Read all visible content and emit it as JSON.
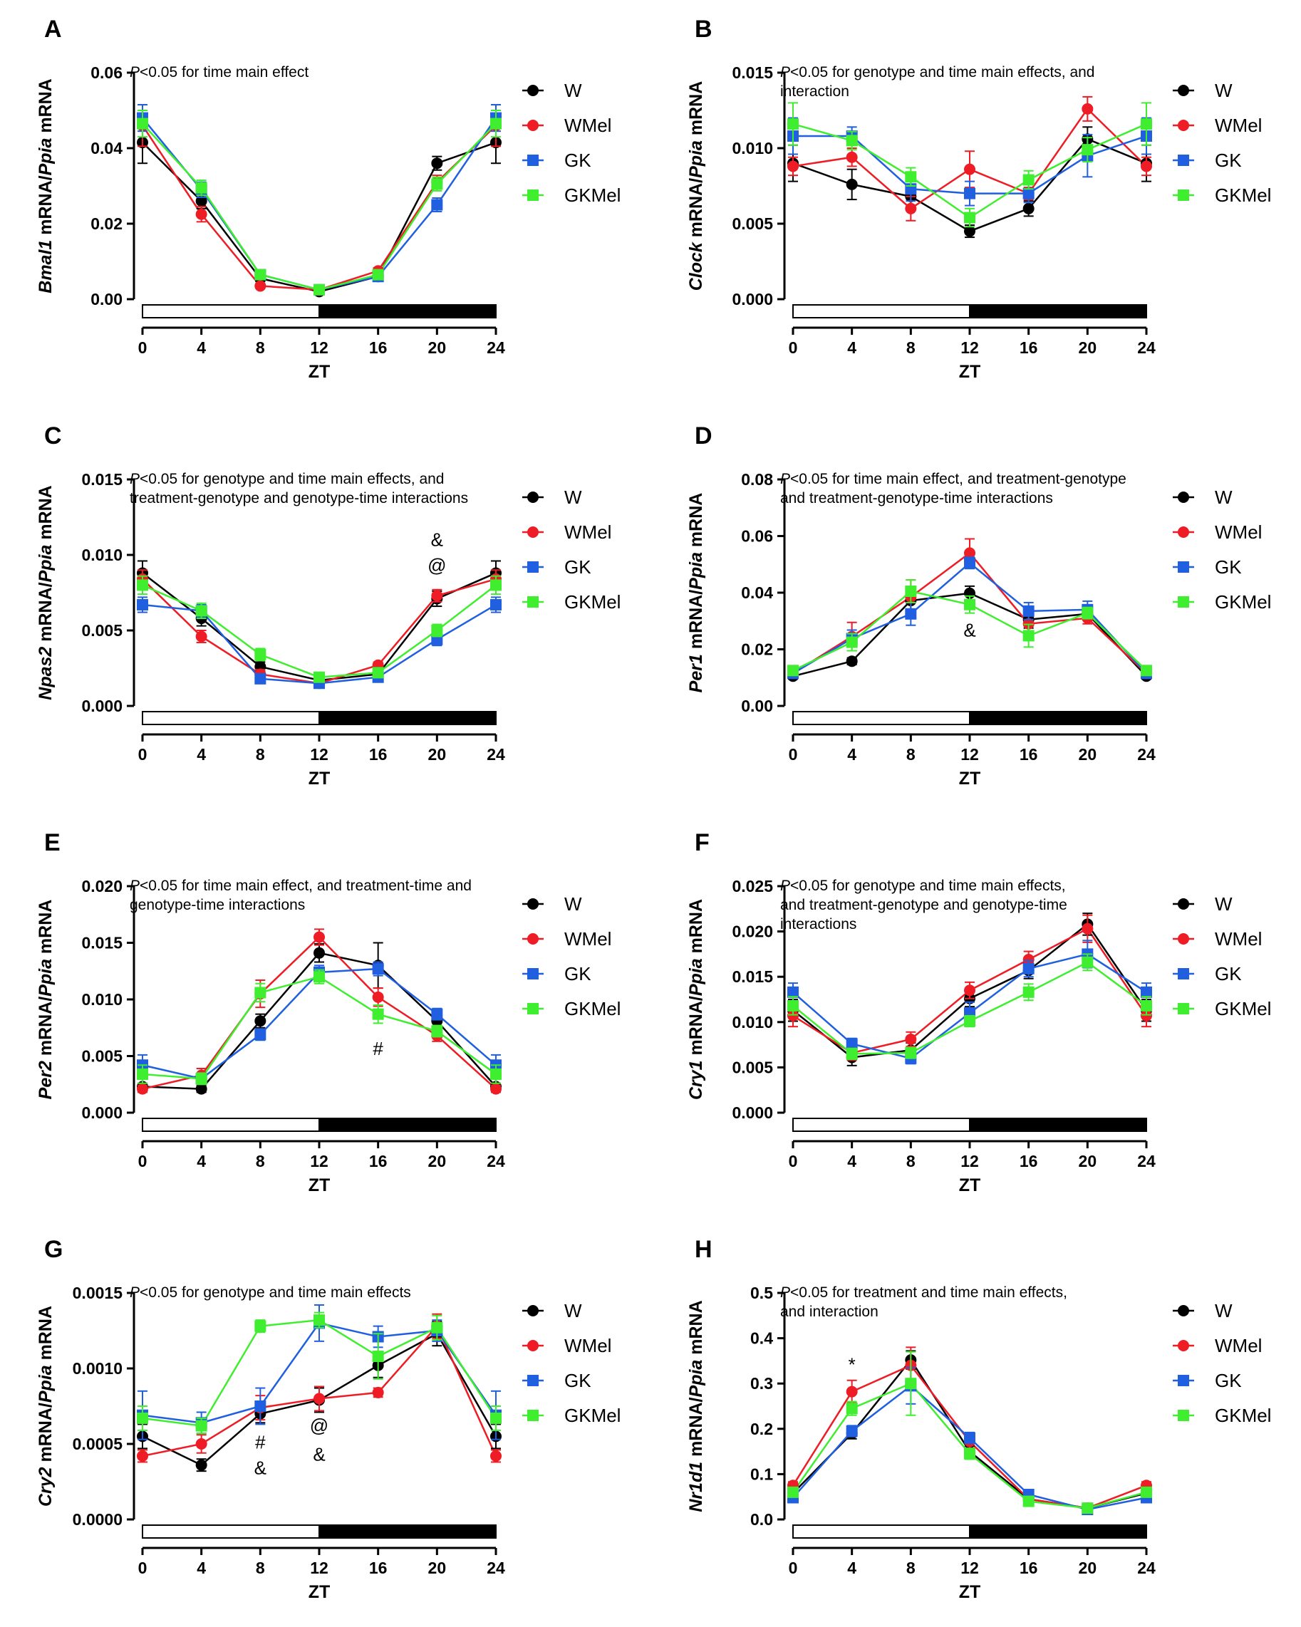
{
  "figure": {
    "legend_labels": [
      "W",
      "WMel",
      "GK",
      "GKMel"
    ],
    "colors": {
      "W": "#000000",
      "WMel": "#ee1c24",
      "GK": "#1f5fe0",
      "GKMel": "#3fee2f"
    },
    "x_axis_title": "ZT",
    "x_ticks": [
      "0",
      "4",
      "8",
      "12",
      "16",
      "20",
      "24"
    ]
  },
  "chart_data": [
    {
      "type": "line",
      "label": "A",
      "gene": "Bmal1",
      "ylabel_gene": "Bmal1",
      "ylabel_rest": " mRNA/",
      "ylabel_ref": "Ppia",
      "ylabel_end": " mRNA",
      "xlabel": "ZT",
      "x": [
        0,
        4,
        8,
        12,
        16,
        20,
        24
      ],
      "ylim": [
        0,
        0.06
      ],
      "yticks": [
        "0.00",
        "0.02",
        "0.04",
        "0.06"
      ],
      "note_p": "P",
      "note": [
        "<0.05 for time main effect"
      ],
      "series": [
        {
          "name": "W",
          "values": [
            0.0415,
            0.026,
            0.0055,
            0.002,
            0.006,
            0.036,
            0.0415
          ],
          "err": [
            0.0055,
            0.002,
            0.0008,
            0.0005,
            0.0008,
            0.0018,
            0.0055
          ]
        },
        {
          "name": "WMel",
          "values": [
            0.046,
            0.0225,
            0.0035,
            0.0025,
            0.0075,
            0.031,
            0.046
          ],
          "err": [
            0.0055,
            0.002,
            0.0005,
            0.0005,
            0.0008,
            0.0018,
            0.0055
          ]
        },
        {
          "name": "GK",
          "values": [
            0.048,
            0.029,
            0.0065,
            0.0025,
            0.006,
            0.025,
            0.048
          ],
          "err": [
            0.0035,
            0.002,
            0.0008,
            0.0005,
            0.0008,
            0.0018,
            0.0035
          ]
        },
        {
          "name": "GKMel",
          "values": [
            0.0465,
            0.0295,
            0.0065,
            0.0025,
            0.0065,
            0.0305,
            0.0465
          ],
          "err": [
            0.0035,
            0.002,
            0.0008,
            0.0005,
            0.0008,
            0.0018,
            0.0035
          ]
        }
      ],
      "annotations": []
    },
    {
      "type": "line",
      "label": "B",
      "gene": "Clock",
      "ylabel_gene": "Clock",
      "ylabel_rest": " mRNA/",
      "ylabel_ref": "Ppia",
      "ylabel_end": " mRNA",
      "xlabel": "ZT",
      "x": [
        0,
        4,
        8,
        12,
        16,
        20,
        24
      ],
      "ylim": [
        0,
        0.015
      ],
      "yticks": [
        "0.000",
        "0.005",
        "0.010",
        "0.015"
      ],
      "note_p": "P",
      "note": [
        "<0.05 for genotype and time main effects, and",
        "interaction"
      ],
      "series": [
        {
          "name": "W",
          "values": [
            0.009,
            0.0076,
            0.0068,
            0.0045,
            0.006,
            0.0106,
            0.009
          ],
          "err": [
            0.0012,
            0.001,
            0.0008,
            0.0004,
            0.0005,
            0.0008,
            0.0012
          ]
        },
        {
          "name": "WMel",
          "values": [
            0.0088,
            0.0094,
            0.006,
            0.0086,
            0.007,
            0.0126,
            0.0088
          ],
          "err": [
            0.0006,
            0.0006,
            0.0008,
            0.0012,
            0.0004,
            0.0008,
            0.0006
          ]
        },
        {
          "name": "GK",
          "values": [
            0.0108,
            0.0108,
            0.0073,
            0.007,
            0.007,
            0.0095,
            0.0108
          ],
          "err": [
            0.0012,
            0.0006,
            0.0008,
            0.0008,
            0.0006,
            0.0014,
            0.0012
          ]
        },
        {
          "name": "GKMel",
          "values": [
            0.0116,
            0.0105,
            0.0081,
            0.0054,
            0.0079,
            0.0099,
            0.0116
          ],
          "err": [
            0.0014,
            0.0006,
            0.0006,
            0.0006,
            0.0006,
            0.0008,
            0.0014
          ]
        }
      ],
      "annotations": []
    },
    {
      "type": "line",
      "label": "C",
      "gene": "Npas2",
      "ylabel_gene": "Npas2",
      "ylabel_rest": " mRNA/",
      "ylabel_ref": "Ppia",
      "ylabel_end": " mRNA",
      "xlabel": "ZT",
      "x": [
        0,
        4,
        8,
        12,
        16,
        20,
        24
      ],
      "ylim": [
        0,
        0.015
      ],
      "yticks": [
        "0.000",
        "0.005",
        "0.010",
        "0.015"
      ],
      "note_p": "P",
      "note": [
        "<0.05 for genotype and time main effects, and",
        "treatment-genotype and genotype-time interactions"
      ],
      "series": [
        {
          "name": "W",
          "values": [
            0.0088,
            0.0058,
            0.0026,
            0.0017,
            0.0021,
            0.0071,
            0.0088
          ],
          "err": [
            0.0008,
            0.0005,
            0.0003,
            0.0002,
            0.0002,
            0.0005,
            0.0008
          ]
        },
        {
          "name": "WMel",
          "values": [
            0.0084,
            0.0046,
            0.0021,
            0.0015,
            0.0027,
            0.0073,
            0.0084
          ],
          "err": [
            0.0006,
            0.0004,
            0.0003,
            0.0002,
            0.0002,
            0.0004,
            0.0006
          ]
        },
        {
          "name": "GK",
          "values": [
            0.0067,
            0.0063,
            0.0018,
            0.0015,
            0.0019,
            0.0044,
            0.0067
          ],
          "err": [
            0.0005,
            0.0004,
            0.0002,
            0.0002,
            0.0002,
            0.0004,
            0.0005
          ]
        },
        {
          "name": "GKMel",
          "values": [
            0.008,
            0.0063,
            0.0034,
            0.0019,
            0.0022,
            0.005,
            0.008
          ],
          "err": [
            0.0006,
            0.0005,
            0.0004,
            0.0002,
            0.0002,
            0.0004,
            0.0006
          ]
        }
      ],
      "annotations": [
        {
          "text": "&",
          "x": 20,
          "y": 0.0106
        },
        {
          "text": "@",
          "x": 20,
          "y": 0.0089
        }
      ]
    },
    {
      "type": "line",
      "label": "D",
      "gene": "Per1",
      "ylabel_gene": "Per1",
      "ylabel_rest": " mRNA/",
      "ylabel_ref": "Ppia",
      "ylabel_end": " mRNA",
      "xlabel": "ZT",
      "x": [
        0,
        4,
        8,
        12,
        16,
        20,
        24
      ],
      "ylim": [
        0,
        0.08
      ],
      "yticks": [
        "0.00",
        "0.02",
        "0.04",
        "0.06",
        "0.08"
      ],
      "note_p": "P",
      "note": [
        "<0.05 for time main effect, and treatment-genotype",
        "and treatment-genotype-time interactions"
      ],
      "series": [
        {
          "name": "W",
          "values": [
            0.0105,
            0.0158,
            0.0372,
            0.0398,
            0.0305,
            0.0325,
            0.0105
          ],
          "err": [
            0.001,
            0.0012,
            0.003,
            0.0025,
            0.003,
            0.002,
            0.001
          ]
        },
        {
          "name": "WMel",
          "values": [
            0.0115,
            0.0245,
            0.0385,
            0.054,
            0.029,
            0.031,
            0.0115
          ],
          "err": [
            0.001,
            0.005,
            0.006,
            0.005,
            0.003,
            0.002,
            0.001
          ]
        },
        {
          "name": "GK",
          "values": [
            0.0115,
            0.0238,
            0.0325,
            0.0505,
            0.0335,
            0.034,
            0.0115
          ],
          "err": [
            0.001,
            0.003,
            0.004,
            0.002,
            0.003,
            0.003,
            0.001
          ]
        },
        {
          "name": "GKMel",
          "values": [
            0.0125,
            0.0225,
            0.0405,
            0.0358,
            0.0248,
            0.0328,
            0.0125
          ],
          "err": [
            0.001,
            0.003,
            0.004,
            0.003,
            0.004,
            0.002,
            0.001
          ]
        }
      ],
      "annotations": [
        {
          "text": "&",
          "x": 12,
          "y": 0.0245
        }
      ]
    },
    {
      "type": "line",
      "label": "E",
      "gene": "Per2",
      "ylabel_gene": "Per2",
      "ylabel_rest": " mRNA/",
      "ylabel_ref": "Ppia",
      "ylabel_end": " mRNA",
      "xlabel": "ZT",
      "x": [
        0,
        4,
        8,
        12,
        16,
        20,
        24
      ],
      "ylim": [
        0,
        0.02
      ],
      "yticks": [
        "0.000",
        "0.005",
        "0.010",
        "0.015",
        "0.020"
      ],
      "note_p": "P",
      "note": [
        "<0.05 for time main effect, and treatment-time and",
        "genotype-time interactions"
      ],
      "series": [
        {
          "name": "W",
          "values": [
            0.0023,
            0.0021,
            0.0081,
            0.0141,
            0.013,
            0.0081,
            0.0023
          ],
          "err": [
            0.0003,
            0.0003,
            0.0006,
            0.0008,
            0.002,
            0.0006,
            0.0003
          ]
        },
        {
          "name": "WMel",
          "values": [
            0.0021,
            0.0033,
            0.0105,
            0.0155,
            0.0102,
            0.0068,
            0.0021
          ],
          "err": [
            0.0003,
            0.0006,
            0.0012,
            0.0007,
            0.0008,
            0.0005,
            0.0003
          ]
        },
        {
          "name": "GK",
          "values": [
            0.0042,
            0.003,
            0.0069,
            0.0124,
            0.0127,
            0.0087,
            0.0042
          ],
          "err": [
            0.0009,
            0.0005,
            0.0005,
            0.0006,
            0.0006,
            0.0005,
            0.0009
          ]
        },
        {
          "name": "GKMel",
          "values": [
            0.0034,
            0.003,
            0.0106,
            0.012,
            0.0087,
            0.0072,
            0.0034
          ],
          "err": [
            0.0008,
            0.0005,
            0.0008,
            0.0006,
            0.0008,
            0.0005,
            0.0008
          ]
        }
      ],
      "annotations": [
        {
          "text": "#",
          "x": 16,
          "y": 0.0051
        }
      ]
    },
    {
      "type": "line",
      "label": "F",
      "gene": "Cry1",
      "ylabel_gene": "Cry1",
      "ylabel_rest": " mRNA/",
      "ylabel_ref": "Ppia",
      "ylabel_end": " mRNA",
      "xlabel": "ZT",
      "x": [
        0,
        4,
        8,
        12,
        16,
        20,
        24
      ],
      "ylim": [
        0,
        0.025
      ],
      "yticks": [
        "0.000",
        "0.005",
        "0.010",
        "0.015",
        "0.020",
        "0.025"
      ],
      "note_p": "P",
      "note": [
        "<0.05 for genotype and time main effects,",
        "and treatment-genotype and genotype-time",
        " interactions"
      ],
      "series": [
        {
          "name": "W",
          "values": [
            0.0113,
            0.0061,
            0.0069,
            0.0126,
            0.0157,
            0.0208,
            0.0113
          ],
          "err": [
            0.0012,
            0.0009,
            0.0008,
            0.0009,
            0.0009,
            0.0012,
            0.0012
          ]
        },
        {
          "name": "WMel",
          "values": [
            0.0107,
            0.0066,
            0.0081,
            0.0135,
            0.0169,
            0.0203,
            0.0107
          ],
          "err": [
            0.0012,
            0.0008,
            0.0008,
            0.0009,
            0.0009,
            0.0015,
            0.0012
          ]
        },
        {
          "name": "GK",
          "values": [
            0.0133,
            0.0076,
            0.006,
            0.011,
            0.0159,
            0.0175,
            0.0133
          ],
          "err": [
            0.001,
            0.0006,
            0.0006,
            0.0012,
            0.0009,
            0.0015,
            0.001
          ]
        },
        {
          "name": "GKMel",
          "values": [
            0.0118,
            0.0065,
            0.0066,
            0.0101,
            0.0133,
            0.0166,
            0.0118
          ],
          "err": [
            0.001,
            0.0006,
            0.0006,
            0.0006,
            0.0009,
            0.0009,
            0.001
          ]
        }
      ],
      "annotations": []
    },
    {
      "type": "line",
      "label": "G",
      "gene": "Cry2",
      "ylabel_gene": "Cry2",
      "ylabel_rest": " mRNA/",
      "ylabel_ref": "Ppia",
      "ylabel_end": " mRNA",
      "xlabel": "ZT",
      "x": [
        0,
        4,
        8,
        12,
        16,
        20,
        24
      ],
      "ylim": [
        0,
        0.0015
      ],
      "yticks": [
        "0.0000",
        "0.0005",
        "0.0010",
        "0.0015"
      ],
      "note_p": "P",
      "note": [
        "<0.05 for genotype and time main effects"
      ],
      "series": [
        {
          "name": "W",
          "values": [
            0.00055,
            0.00036,
            0.0007,
            0.00079,
            0.00102,
            0.00123,
            0.00055
          ],
          "err": [
            8e-05,
            4e-05,
            6e-05,
            8e-05,
            8e-05,
            8e-05,
            8e-05
          ]
        },
        {
          "name": "WMel",
          "values": [
            0.00042,
            0.0005,
            0.00074,
            0.0008,
            0.00084,
            0.00128,
            0.00042
          ],
          "err": [
            4e-05,
            6e-05,
            8e-05,
            8e-05,
            3e-05,
            8e-05,
            4e-05
          ]
        },
        {
          "name": "GK",
          "values": [
            0.00069,
            0.00064,
            0.00075,
            0.0013,
            0.00121,
            0.00125,
            0.00069
          ],
          "err": [
            0.00016,
            7e-05,
            0.00012,
            0.00012,
            7e-05,
            7e-05,
            0.00016
          ]
        },
        {
          "name": "GKMel",
          "values": [
            0.00067,
            0.00062,
            0.00128,
            0.00132,
            0.00108,
            0.00127,
            0.00067
          ],
          "err": [
            8e-05,
            5e-05,
            4e-05,
            5e-05,
            0.00015,
            8e-05,
            8e-05
          ]
        }
      ],
      "annotations": [
        {
          "text": "#",
          "x": 8,
          "y": 0.00047
        },
        {
          "text": "&",
          "x": 8,
          "y": 0.0003
        },
        {
          "text": "@",
          "x": 12,
          "y": 0.00058
        },
        {
          "text": "&",
          "x": 12,
          "y": 0.00039
        }
      ]
    },
    {
      "type": "line",
      "label": "H",
      "gene": "Nr1d1",
      "ylabel_gene": "Nr1d1",
      "ylabel_rest": " mRNA/",
      "ylabel_ref": "Ppia",
      "ylabel_end": " mRNA",
      "xlabel": "ZT",
      "x": [
        0,
        4,
        8,
        12,
        16,
        20,
        24
      ],
      "ylim": [
        0,
        0.5
      ],
      "yticks": [
        "0.0",
        "0.1",
        "0.2",
        "0.3",
        "0.4",
        "0.5"
      ],
      "note_p": "P",
      "note": [
        "<0.05 for treatment and time main effects,",
        "and interaction"
      ],
      "series": [
        {
          "name": "W",
          "values": [
            0.058,
            0.19,
            0.352,
            0.15,
            0.045,
            0.025,
            0.058
          ],
          "err": [
            0.008,
            0.012,
            0.02,
            0.012,
            0.005,
            0.004,
            0.008
          ]
        },
        {
          "name": "WMel",
          "values": [
            0.075,
            0.282,
            0.34,
            0.172,
            0.045,
            0.025,
            0.075
          ],
          "err": [
            0.008,
            0.025,
            0.04,
            0.015,
            0.005,
            0.004,
            0.008
          ]
        },
        {
          "name": "GK",
          "values": [
            0.048,
            0.195,
            0.295,
            0.18,
            0.055,
            0.022,
            0.048
          ],
          "err": [
            0.006,
            0.012,
            0.04,
            0.012,
            0.006,
            0.004,
            0.006
          ]
        },
        {
          "name": "GKMel",
          "values": [
            0.06,
            0.245,
            0.3,
            0.145,
            0.04,
            0.025,
            0.06
          ],
          "err": [
            0.008,
            0.015,
            0.07,
            0.012,
            0.005,
            0.004,
            0.008
          ]
        }
      ],
      "annotations": [
        {
          "text": "*",
          "x": 4,
          "y": 0.328
        }
      ]
    }
  ]
}
